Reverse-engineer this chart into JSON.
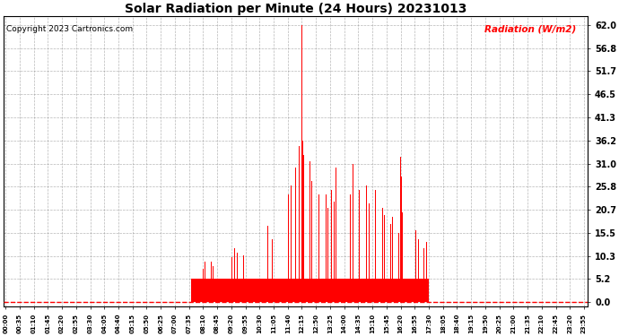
{
  "title": "Solar Radiation per Minute (24 Hours) 20231013",
  "copyright_text": "Copyright 2023 Cartronics.com",
  "ylabel": "Radiation (W/m2)",
  "ylabel_color": "#ff0000",
  "title_color": "#000000",
  "background_color": "#ffffff",
  "bar_color": "#ff0000",
  "grid_color": "#888888",
  "dashed_line_color": "#ff0000",
  "yticks": [
    0.0,
    5.2,
    10.3,
    15.5,
    20.7,
    25.8,
    31.0,
    36.2,
    41.3,
    46.5,
    51.7,
    56.8,
    62.0
  ],
  "ylim": [
    -1.0,
    64.0
  ],
  "total_minutes": 1440,
  "sunrise_minute": 460,
  "sunset_minute": 1050,
  "peak_minute": 735,
  "peak_value": 62.0,
  "base_level": 5.2,
  "x_tick_labels": [
    "00:00",
    "00:35",
    "01:10",
    "01:45",
    "02:20",
    "02:55",
    "03:30",
    "04:05",
    "04:40",
    "05:15",
    "05:50",
    "06:25",
    "07:00",
    "07:35",
    "08:10",
    "08:45",
    "09:20",
    "09:55",
    "10:30",
    "11:05",
    "11:40",
    "12:15",
    "12:50",
    "13:25",
    "14:00",
    "14:35",
    "15:10",
    "15:45",
    "16:20",
    "16:55",
    "17:30",
    "18:05",
    "18:40",
    "19:15",
    "19:50",
    "20:25",
    "21:00",
    "21:35",
    "22:10",
    "22:45",
    "23:20",
    "23:55"
  ],
  "x_tick_positions": [
    0,
    35,
    70,
    105,
    140,
    175,
    210,
    245,
    280,
    315,
    350,
    385,
    420,
    455,
    490,
    525,
    560,
    595,
    630,
    665,
    700,
    735,
    770,
    805,
    840,
    875,
    910,
    945,
    980,
    1015,
    1050,
    1085,
    1120,
    1155,
    1190,
    1225,
    1260,
    1295,
    1330,
    1365,
    1400,
    1435
  ]
}
